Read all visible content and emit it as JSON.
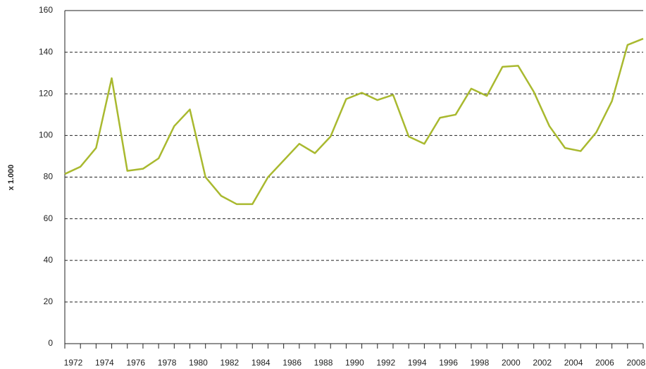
{
  "chart_data": {
    "type": "line",
    "y_label": "x 1.000",
    "x": [
      1972,
      1973,
      1974,
      1975,
      1976,
      1977,
      1978,
      1979,
      1980,
      1981,
      1982,
      1983,
      1984,
      1985,
      1986,
      1987,
      1988,
      1989,
      1990,
      1991,
      1992,
      1993,
      1994,
      1995,
      1996,
      1997,
      1998,
      1999,
      2000,
      2001,
      2002,
      2003,
      2004,
      2005,
      2006,
      2007,
      2008,
      2009
    ],
    "values": [
      81.5,
      85,
      94,
      127.5,
      83,
      84,
      89,
      104.5,
      112.5,
      80,
      71,
      67,
      67,
      80,
      88,
      96,
      91.5,
      99.5,
      117.5,
      120.5,
      117,
      119.5,
      99.5,
      96,
      108.5,
      110,
      122.5,
      119,
      133,
      133.5,
      121,
      104.5,
      94,
      92.5,
      101.5,
      116.5,
      143.5,
      146.5
    ],
    "color": "#a9b92f",
    "xlim": [
      1972,
      2009
    ],
    "xticks": [
      1972,
      1974,
      1976,
      1978,
      1980,
      1982,
      1984,
      1986,
      1988,
      1990,
      1992,
      1994,
      1996,
      1998,
      2000,
      2002,
      2004,
      2006,
      2008
    ],
    "ylim": [
      0,
      160
    ],
    "yticks": [
      0,
      20,
      40,
      60,
      80,
      100,
      120,
      140,
      160
    ],
    "grid": true
  }
}
